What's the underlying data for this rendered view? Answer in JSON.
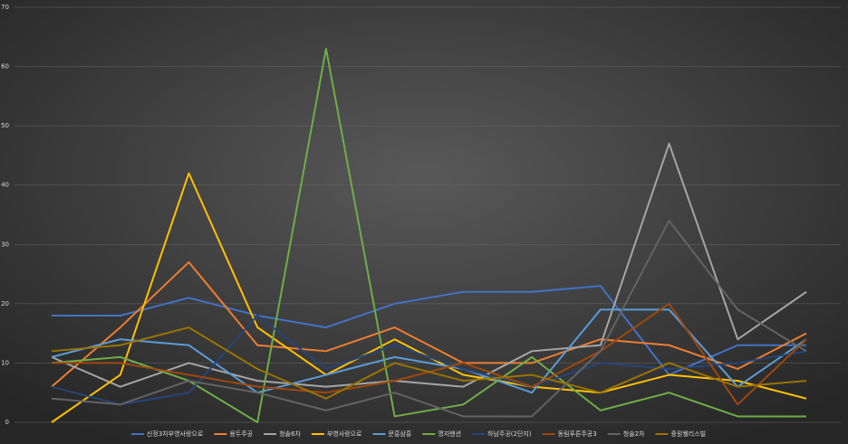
{
  "chart_data": {
    "type": "line",
    "ylim": [
      0,
      70
    ],
    "yticks": [
      0,
      10,
      20,
      30,
      40,
      50,
      60,
      70
    ],
    "grid": true,
    "legend": "bottom",
    "categories": [
      null,
      null,
      null,
      null,
      null,
      null,
      null,
      null,
      null,
      null,
      null,
      null
    ],
    "series": [
      {
        "name": "신정3차부영사랑으로",
        "color": "#4472c4",
        "values": [
          18,
          18,
          21,
          18,
          16,
          20,
          22,
          22,
          23,
          8,
          13,
          13
        ]
      },
      {
        "name": "용두주공",
        "color": "#ed7d31",
        "values": [
          6,
          16,
          27,
          13,
          12,
          16,
          10,
          10,
          14,
          13,
          9,
          15
        ]
      },
      {
        "name": "청솔6차",
        "color": "#a5a5a5",
        "values": [
          11,
          6,
          10,
          7,
          6,
          7,
          6,
          12,
          13,
          47,
          14,
          22
        ]
      },
      {
        "name": "부영사랑으로",
        "color": "#ffc000",
        "values": [
          0,
          8,
          42,
          16,
          8,
          14,
          8,
          6,
          5,
          8,
          7,
          4
        ]
      },
      {
        "name": "문흥삼흥",
        "color": "#5b9bd5",
        "values": [
          11,
          14,
          13,
          5,
          8,
          11,
          9,
          5,
          19,
          19,
          6,
          14
        ]
      },
      {
        "name": "명지맨션",
        "color": "#70ad47",
        "values": [
          10,
          11,
          7,
          0,
          63,
          1,
          3,
          11,
          2,
          5,
          1,
          1
        ]
      },
      {
        "name": "하남주공(2단지)",
        "color": "#264478",
        "values": [
          6,
          3,
          5,
          18,
          9,
          13,
          9,
          6,
          10,
          9,
          10,
          12
        ]
      },
      {
        "name": "동림푸른주공3",
        "color": "#9e480e",
        "values": [
          10,
          10,
          8,
          6,
          5,
          7,
          10,
          6,
          12,
          20,
          3,
          14
        ]
      },
      {
        "name": "청솔2차",
        "color": "#636363",
        "values": [
          4,
          3,
          7,
          5,
          2,
          5,
          1,
          1,
          12,
          34,
          19,
          12
        ]
      },
      {
        "name": "중원웰리스빌",
        "color": "#997300",
        "values": [
          12,
          13,
          16,
          9,
          4,
          10,
          7,
          8,
          5,
          10,
          6,
          7
        ]
      }
    ]
  }
}
